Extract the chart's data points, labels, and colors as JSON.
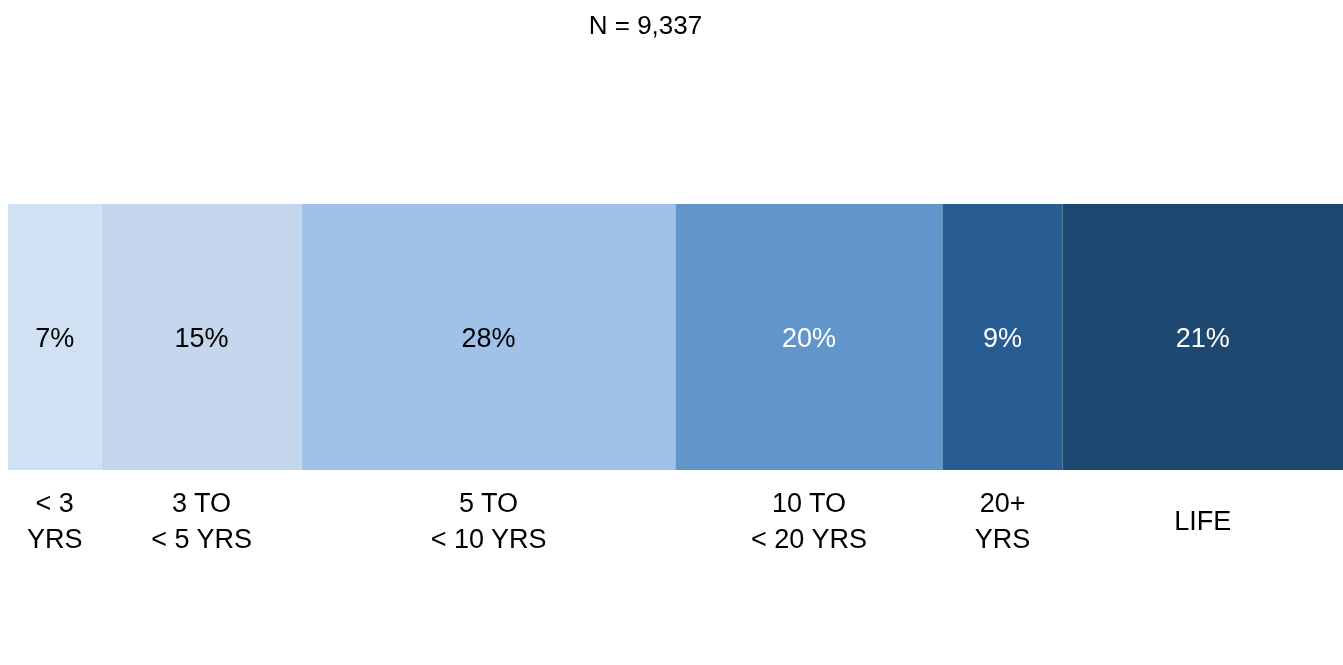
{
  "chart_data": {
    "type": "bar",
    "title": "N = 9,337",
    "orientation": "horizontal",
    "stacked": true,
    "categories": [
      null
    ],
    "xlim": [
      0,
      100
    ],
    "grid": false,
    "legend": false,
    "series": [
      {
        "name": "< 3 YRS",
        "color": "#d0e1f3",
        "values": [
          7
        ],
        "value_labels": [
          "7%"
        ]
      },
      {
        "name": "3 TO < 5 YRS",
        "color": "#c3d6ec",
        "values": [
          15
        ],
        "value_labels": [
          "15%"
        ]
      },
      {
        "name": "5 TO < 10 YRS",
        "color": "#a0c2e9",
        "values": [
          28
        ],
        "value_labels": [
          "28%"
        ]
      },
      {
        "name": "10 TO < 20 YRS",
        "color": "#6096c9",
        "values": [
          20
        ],
        "value_labels": [
          "20%"
        ]
      },
      {
        "name": "20+ YRS",
        "color": "#275d92",
        "values": [
          9
        ],
        "value_labels": [
          "9%"
        ]
      },
      {
        "name": "LIFE",
        "color": "#1e4870",
        "values": [
          21
        ],
        "value_labels": [
          "21%"
        ]
      }
    ]
  }
}
